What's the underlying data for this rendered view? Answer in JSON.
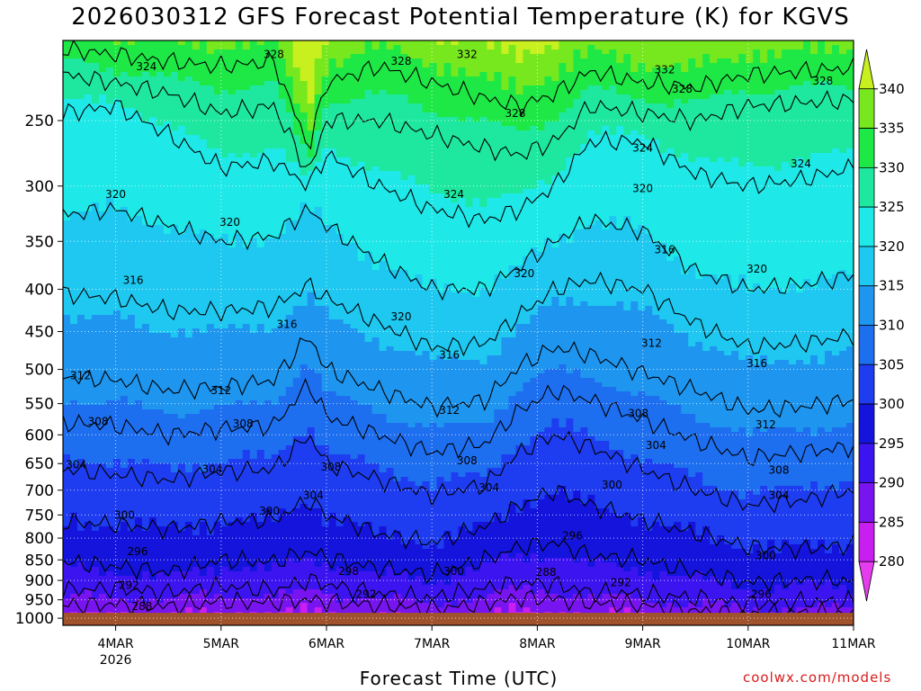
{
  "title": "2026030312 GFS Forecast Potential Temperature (K) for KGVS",
  "credit": "coolwx.com/models",
  "chart_data": {
    "type": "heatmap",
    "title": "2026030312 GFS Forecast Potential Temperature (K) for KGVS",
    "xlabel": "Forecast Time (UTC)",
    "ylabel": "",
    "x_range_hours": [
      0,
      180
    ],
    "y_range_hPa": [
      1020,
      200
    ],
    "y_scale": "log",
    "grid": true,
    "x_ticks": [
      {
        "label": "4MAR",
        "sublabel": "2026",
        "hour": 12
      },
      {
        "label": "5MAR",
        "sublabel": "",
        "hour": 36
      },
      {
        "label": "6MAR",
        "sublabel": "",
        "hour": 60
      },
      {
        "label": "7MAR",
        "sublabel": "",
        "hour": 84
      },
      {
        "label": "8MAR",
        "sublabel": "",
        "hour": 108
      },
      {
        "label": "9MAR",
        "sublabel": "",
        "hour": 132
      },
      {
        "label": "10MAR",
        "sublabel": "",
        "hour": 156
      },
      {
        "label": "11MAR",
        "sublabel": "",
        "hour": 180
      }
    ],
    "y_ticks": [
      "250",
      "300",
      "350",
      "400",
      "450",
      "500",
      "550",
      "600",
      "650",
      "700",
      "750",
      "800",
      "850",
      "900",
      "950",
      "1000"
    ],
    "y_tick_values": [
      250,
      300,
      350,
      400,
      450,
      500,
      550,
      600,
      650,
      700,
      750,
      800,
      850,
      900,
      950,
      1000
    ],
    "colorbar": {
      "labels": [
        "340",
        "335",
        "330",
        "325",
        "320",
        "315",
        "310",
        "305",
        "300",
        "295",
        "290",
        "285",
        "280"
      ],
      "values": [
        340,
        335,
        330,
        325,
        320,
        315,
        310,
        305,
        300,
        295,
        290,
        285,
        280
      ],
      "colors": [
        "#c8f01e",
        "#78e81e",
        "#1ee846",
        "#1ee8a0",
        "#1ee8e8",
        "#1ec8f0",
        "#1e96f0",
        "#1e6ef0",
        "#1e3cf0",
        "#1414dc",
        "#3c14f0",
        "#7814f0",
        "#c81ef0",
        "#e63cf0"
      ]
    },
    "ground_color": "#a0522d",
    "contour_interval": 4,
    "isentropes": [
      {
        "value": 288,
        "points": [
          [
            0,
            965
          ],
          [
            12,
            962
          ],
          [
            24,
            968
          ],
          [
            36,
            955
          ],
          [
            48,
            958
          ],
          [
            56,
            950
          ],
          [
            60,
            955
          ],
          [
            72,
            965
          ],
          [
            84,
            975
          ],
          [
            96,
            960
          ],
          [
            104,
            945
          ],
          [
            112,
            948
          ],
          [
            120,
            960
          ],
          [
            132,
            965
          ],
          [
            144,
            980
          ],
          [
            156,
            990
          ],
          [
            168,
            985
          ],
          [
            180,
            990
          ]
        ]
      },
      {
        "value": 292,
        "points": [
          [
            0,
            925
          ],
          [
            12,
            920
          ],
          [
            24,
            932
          ],
          [
            36,
            915
          ],
          [
            48,
            925
          ],
          [
            56,
            900
          ],
          [
            60,
            910
          ],
          [
            72,
            935
          ],
          [
            84,
            945
          ],
          [
            96,
            920
          ],
          [
            104,
            905
          ],
          [
            112,
            910
          ],
          [
            120,
            930
          ],
          [
            132,
            935
          ],
          [
            144,
            945
          ],
          [
            156,
            960
          ],
          [
            168,
            955
          ],
          [
            180,
            955
          ]
        ]
      },
      {
        "value": 296,
        "points": [
          [
            0,
            855
          ],
          [
            12,
            865
          ],
          [
            24,
            880
          ],
          [
            36,
            850
          ],
          [
            48,
            855
          ],
          [
            56,
            830
          ],
          [
            60,
            845
          ],
          [
            72,
            870
          ],
          [
            84,
            885
          ],
          [
            96,
            850
          ],
          [
            104,
            820
          ],
          [
            112,
            810
          ],
          [
            120,
            840
          ],
          [
            132,
            850
          ],
          [
            144,
            880
          ],
          [
            156,
            905
          ],
          [
            168,
            900
          ],
          [
            180,
            900
          ]
        ]
      },
      {
        "value": 300,
        "points": [
          [
            0,
            765
          ],
          [
            12,
            770
          ],
          [
            24,
            780
          ],
          [
            36,
            765
          ],
          [
            48,
            760
          ],
          [
            56,
            720
          ],
          [
            60,
            750
          ],
          [
            72,
            790
          ],
          [
            84,
            810
          ],
          [
            96,
            775
          ],
          [
            104,
            730
          ],
          [
            112,
            700
          ],
          [
            120,
            730
          ],
          [
            132,
            760
          ],
          [
            144,
            790
          ],
          [
            156,
            820
          ],
          [
            168,
            825
          ],
          [
            180,
            815
          ]
        ]
      },
      {
        "value": 304,
        "points": [
          [
            0,
            660
          ],
          [
            12,
            670
          ],
          [
            24,
            680
          ],
          [
            36,
            665
          ],
          [
            48,
            660
          ],
          [
            56,
            600
          ],
          [
            60,
            650
          ],
          [
            72,
            680
          ],
          [
            84,
            710
          ],
          [
            96,
            690
          ],
          [
            104,
            630
          ],
          [
            112,
            600
          ],
          [
            120,
            620
          ],
          [
            132,
            660
          ],
          [
            144,
            700
          ],
          [
            156,
            730
          ],
          [
            168,
            720
          ],
          [
            180,
            700
          ]
        ]
      },
      {
        "value": 308,
        "points": [
          [
            0,
            580
          ],
          [
            12,
            585
          ],
          [
            24,
            600
          ],
          [
            36,
            590
          ],
          [
            48,
            585
          ],
          [
            56,
            520
          ],
          [
            60,
            570
          ],
          [
            72,
            600
          ],
          [
            84,
            630
          ],
          [
            96,
            615
          ],
          [
            104,
            560
          ],
          [
            112,
            530
          ],
          [
            120,
            545
          ],
          [
            132,
            575
          ],
          [
            144,
            610
          ],
          [
            156,
            640
          ],
          [
            168,
            630
          ],
          [
            180,
            620
          ]
        ]
      },
      {
        "value": 312,
        "points": [
          [
            0,
            510
          ],
          [
            12,
            515
          ],
          [
            24,
            530
          ],
          [
            36,
            525
          ],
          [
            48,
            515
          ],
          [
            56,
            455
          ],
          [
            60,
            500
          ],
          [
            72,
            530
          ],
          [
            84,
            555
          ],
          [
            96,
            545
          ],
          [
            104,
            495
          ],
          [
            112,
            470
          ],
          [
            120,
            480
          ],
          [
            132,
            505
          ],
          [
            144,
            530
          ],
          [
            156,
            560
          ],
          [
            168,
            555
          ],
          [
            180,
            545
          ]
        ]
      },
      {
        "value": 316,
        "points": [
          [
            0,
            405
          ],
          [
            12,
            410
          ],
          [
            24,
            425
          ],
          [
            36,
            425
          ],
          [
            48,
            420
          ],
          [
            56,
            395
          ],
          [
            60,
            410
          ],
          [
            72,
            440
          ],
          [
            84,
            470
          ],
          [
            96,
            465
          ],
          [
            104,
            430
          ],
          [
            112,
            400
          ],
          [
            120,
            390
          ],
          [
            132,
            400
          ],
          [
            144,
            440
          ],
          [
            156,
            470
          ],
          [
            168,
            465
          ],
          [
            180,
            455
          ]
        ]
      },
      {
        "value": 320,
        "points": [
          [
            0,
            325
          ],
          [
            12,
            320
          ],
          [
            24,
            335
          ],
          [
            36,
            350
          ],
          [
            48,
            345
          ],
          [
            56,
            320
          ],
          [
            60,
            335
          ],
          [
            72,
            370
          ],
          [
            84,
            400
          ],
          [
            96,
            400
          ],
          [
            104,
            375
          ],
          [
            112,
            350
          ],
          [
            120,
            330
          ],
          [
            132,
            340
          ],
          [
            144,
            380
          ],
          [
            156,
            400
          ],
          [
            168,
            395
          ],
          [
            180,
            385
          ]
        ]
      },
      {
        "value": 324,
        "points": [
          [
            0,
            245
          ],
          [
            12,
            240
          ],
          [
            24,
            260
          ],
          [
            36,
            285
          ],
          [
            48,
            280
          ],
          [
            56,
            300
          ],
          [
            60,
            275
          ],
          [
            72,
            300
          ],
          [
            84,
            320
          ],
          [
            96,
            330
          ],
          [
            104,
            320
          ],
          [
            112,
            300
          ],
          [
            120,
            265
          ],
          [
            132,
            265
          ],
          [
            144,
            290
          ],
          [
            156,
            300
          ],
          [
            168,
            295
          ],
          [
            180,
            285
          ]
        ]
      },
      {
        "value": 328,
        "points": [
          [
            0,
            220
          ],
          [
            12,
            225
          ],
          [
            24,
            232
          ],
          [
            36,
            245
          ],
          [
            48,
            240
          ],
          [
            56,
            290
          ],
          [
            60,
            250
          ],
          [
            72,
            250
          ],
          [
            84,
            260
          ],
          [
            96,
            270
          ],
          [
            104,
            275
          ],
          [
            112,
            265
          ],
          [
            120,
            240
          ],
          [
            132,
            245
          ],
          [
            144,
            250
          ],
          [
            156,
            240
          ],
          [
            168,
            238
          ],
          [
            180,
            236
          ]
        ]
      },
      {
        "value": 332,
        "points": [
          [
            0,
            205
          ],
          [
            12,
            208
          ],
          [
            24,
            212
          ],
          [
            36,
            215
          ],
          [
            48,
            212
          ],
          [
            56,
            270
          ],
          [
            60,
            225
          ],
          [
            72,
            215
          ],
          [
            84,
            225
          ],
          [
            96,
            235
          ],
          [
            104,
            240
          ],
          [
            112,
            232
          ],
          [
            120,
            218
          ],
          [
            132,
            225
          ],
          [
            144,
            228
          ],
          [
            156,
            220
          ],
          [
            168,
            218
          ],
          [
            180,
            216
          ]
        ]
      }
    ],
    "contour_labels": [
      {
        "text": "324",
        "hour": 19,
        "hPa": 215
      },
      {
        "text": "328",
        "hour": 48,
        "hPa": 208
      },
      {
        "text": "328",
        "hour": 77,
        "hPa": 212
      },
      {
        "text": "332",
        "hour": 92,
        "hPa": 208
      },
      {
        "text": "332",
        "hour": 137,
        "hPa": 217
      },
      {
        "text": "328",
        "hour": 141,
        "hPa": 229
      },
      {
        "text": "328",
        "hour": 103,
        "hPa": 245
      },
      {
        "text": "328",
        "hour": 173,
        "hPa": 224
      },
      {
        "text": "324",
        "hour": 132,
        "hPa": 270
      },
      {
        "text": "324",
        "hour": 168,
        "hPa": 282
      },
      {
        "text": "320",
        "hour": 132,
        "hPa": 302
      },
      {
        "text": "324",
        "hour": 89,
        "hPa": 307
      },
      {
        "text": "320",
        "hour": 12,
        "hPa": 307
      },
      {
        "text": "320",
        "hour": 38,
        "hPa": 332
      },
      {
        "text": "316",
        "hour": 137,
        "hPa": 358
      },
      {
        "text": "320",
        "hour": 158,
        "hPa": 378
      },
      {
        "text": "320",
        "hour": 105,
        "hPa": 383
      },
      {
        "text": "316",
        "hour": 16,
        "hPa": 390
      },
      {
        "text": "320",
        "hour": 77,
        "hPa": 432
      },
      {
        "text": "316",
        "hour": 51,
        "hPa": 441
      },
      {
        "text": "316",
        "hour": 88,
        "hPa": 480
      },
      {
        "text": "312",
        "hour": 134,
        "hPa": 465
      },
      {
        "text": "316",
        "hour": 158,
        "hPa": 492
      },
      {
        "text": "312",
        "hour": 4,
        "hPa": 509
      },
      {
        "text": "312",
        "hour": 36,
        "hPa": 530
      },
      {
        "text": "312",
        "hour": 88,
        "hPa": 560
      },
      {
        "text": "308",
        "hour": 8,
        "hPa": 578
      },
      {
        "text": "308",
        "hour": 41,
        "hPa": 582
      },
      {
        "text": "308",
        "hour": 131,
        "hPa": 565
      },
      {
        "text": "312",
        "hour": 160,
        "hPa": 583
      },
      {
        "text": "304",
        "hour": 3,
        "hPa": 652
      },
      {
        "text": "304",
        "hour": 34,
        "hPa": 660
      },
      {
        "text": "308",
        "hour": 61,
        "hPa": 656
      },
      {
        "text": "308",
        "hour": 92,
        "hPa": 645
      },
      {
        "text": "304",
        "hour": 135,
        "hPa": 618
      },
      {
        "text": "308",
        "hour": 163,
        "hPa": 662
      },
      {
        "text": "304",
        "hour": 57,
        "hPa": 710
      },
      {
        "text": "304",
        "hour": 97,
        "hPa": 695
      },
      {
        "text": "300",
        "hour": 125,
        "hPa": 690
      },
      {
        "text": "304",
        "hour": 163,
        "hPa": 710
      },
      {
        "text": "300",
        "hour": 14,
        "hPa": 750
      },
      {
        "text": "300",
        "hour": 47,
        "hPa": 742
      },
      {
        "text": "296",
        "hour": 116,
        "hPa": 795
      },
      {
        "text": "296",
        "hour": 17,
        "hPa": 830
      },
      {
        "text": "300",
        "hour": 160,
        "hPa": 840
      },
      {
        "text": "300",
        "hour": 89,
        "hPa": 878
      },
      {
        "text": "298",
        "hour": 65,
        "hPa": 878
      },
      {
        "text": "288",
        "hour": 110,
        "hPa": 880
      },
      {
        "text": "292",
        "hour": 127,
        "hPa": 905
      },
      {
        "text": "292",
        "hour": 15,
        "hPa": 912
      },
      {
        "text": "292",
        "hour": 69,
        "hPa": 935
      },
      {
        "text": "296",
        "hour": 159,
        "hPa": 935
      },
      {
        "text": "288",
        "hour": 18,
        "hPa": 968
      }
    ]
  }
}
